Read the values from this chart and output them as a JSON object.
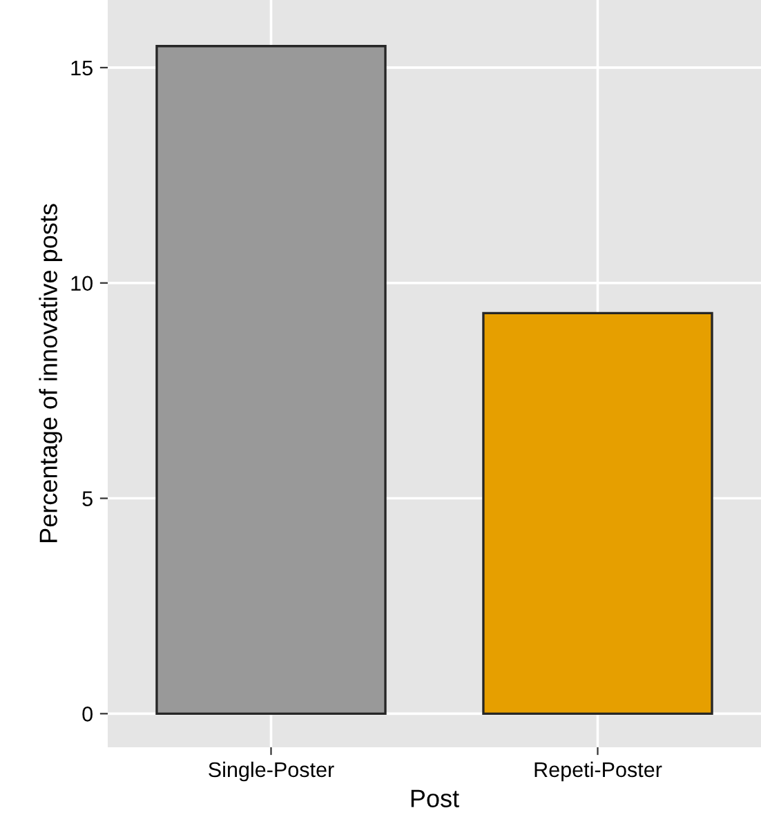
{
  "chart_data": {
    "type": "bar",
    "xlabel": "Post",
    "ylabel": "Percentage of innovative posts",
    "categories": [
      "Single-Poster",
      "Repeti-Poster"
    ],
    "values": [
      15.5,
      9.3
    ],
    "colors": [
      "#999999",
      "#e69f00"
    ],
    "ylim": [
      -0.78,
      16.57
    ],
    "yticks": [
      0,
      5,
      10,
      15
    ],
    "grid": true
  }
}
